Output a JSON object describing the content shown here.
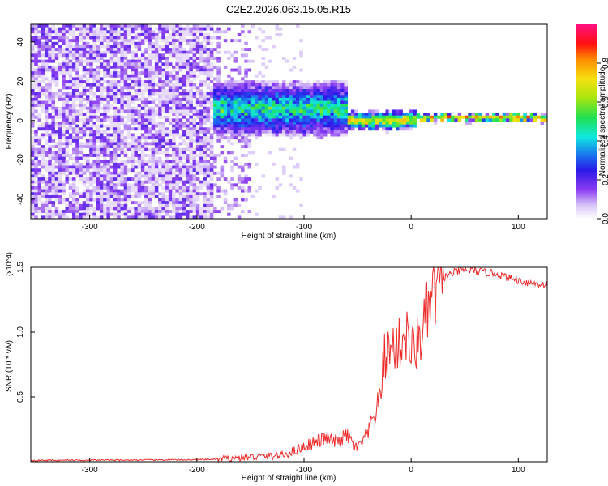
{
  "title": "C2E2.2026.063.15.05.R15",
  "chart_data": [
    {
      "type": "heatmap",
      "name": "spectrogram",
      "xlabel": "Height of straight line (km)",
      "ylabel": "Frequency (Hz)",
      "xlim": [
        -355,
        127
      ],
      "ylim": [
        -50,
        49
      ],
      "x_ticks": [
        -300,
        -200,
        -100,
        0,
        100
      ],
      "x_tick_labels": [
        "-300",
        "-200",
        "-100",
        "0",
        "100"
      ],
      "y_ticks": [
        -40,
        -20,
        0,
        20,
        40
      ],
      "y_tick_labels": [
        "-40",
        "-20",
        "0",
        "20",
        "40"
      ],
      "colorbar": {
        "label": "Normalized spectral amplitude",
        "range": [
          0.0,
          1.0
        ],
        "ticks": [
          0.0,
          0.2,
          0.4,
          0.6,
          0.8
        ],
        "tick_labels": [
          "0.0",
          "0.2",
          "0.4",
          "0.6",
          "0.8"
        ],
        "colormap": [
          {
            "v": 0.0,
            "color": "#ffffff"
          },
          {
            "v": 0.07,
            "color": "#d8c4f8"
          },
          {
            "v": 0.15,
            "color": "#8a3cf2"
          },
          {
            "v": 0.25,
            "color": "#2a1ae8"
          },
          {
            "v": 0.32,
            "color": "#1b6cf0"
          },
          {
            "v": 0.42,
            "color": "#10e8e0"
          },
          {
            "v": 0.52,
            "color": "#20e050"
          },
          {
            "v": 0.62,
            "color": "#a8e610"
          },
          {
            "v": 0.72,
            "color": "#f6e010"
          },
          {
            "v": 0.82,
            "color": "#ff8a00"
          },
          {
            "v": 0.9,
            "color": "#ff1010"
          },
          {
            "v": 1.0,
            "color": "#ff1080"
          }
        ]
      },
      "regions": [
        {
          "name": "noise",
          "x_range": [
            -355,
            -185
          ],
          "description": "broadband noise, amplitude ~0.05-0.2"
        },
        {
          "name": "transition",
          "x_range": [
            -185,
            -60
          ],
          "center_hz": 6,
          "width_hz": 14
        },
        {
          "name": "converging",
          "x_range": [
            -60,
            5
          ],
          "center_hz": 0,
          "width_hz": 5
        },
        {
          "name": "tone",
          "x_range": [
            5,
            127
          ],
          "center_hz": 1.5,
          "width_hz": 2
        }
      ]
    },
    {
      "type": "line",
      "name": "snr",
      "xlabel": "Height of straight line (km)",
      "ylabel": "SNR (10 * v/v)",
      "y_multiplier": "(x10^4)",
      "xlim": [
        -355,
        127
      ],
      "ylim": [
        0,
        1.5
      ],
      "x_ticks": [
        -300,
        -200,
        -100,
        0,
        100
      ],
      "x_tick_labels": [
        "-300",
        "-200",
        "-100",
        "0",
        "100"
      ],
      "y_ticks": [
        0.5,
        1.0,
        1.5
      ],
      "y_tick_labels": [
        "0.5",
        "1.0",
        "1.5"
      ],
      "series_color": "#ee2a2a",
      "series": [
        {
          "name": "SNR",
          "x": [
            -355,
            -300,
            -250,
            -200,
            -180,
            -160,
            -140,
            -120,
            -110,
            -100,
            -90,
            -80,
            -70,
            -60,
            -50,
            -40,
            -35,
            -30,
            -25,
            -20,
            -15,
            -10,
            -5,
            0,
            5,
            10,
            15,
            20,
            25,
            30,
            40,
            50,
            60,
            70,
            80,
            90,
            100,
            110,
            120,
            127
          ],
          "y": [
            0.01,
            0.012,
            0.013,
            0.015,
            0.02,
            0.03,
            0.04,
            0.05,
            0.08,
            0.12,
            0.15,
            0.18,
            0.15,
            0.2,
            0.1,
            0.22,
            0.35,
            0.45,
            0.8,
            0.85,
            0.9,
            0.9,
            1.0,
            0.85,
            0.9,
            1.0,
            1.15,
            1.25,
            1.35,
            1.42,
            1.46,
            1.48,
            1.47,
            1.46,
            1.45,
            1.42,
            1.4,
            1.38,
            1.37,
            1.37
          ]
        }
      ]
    }
  ]
}
